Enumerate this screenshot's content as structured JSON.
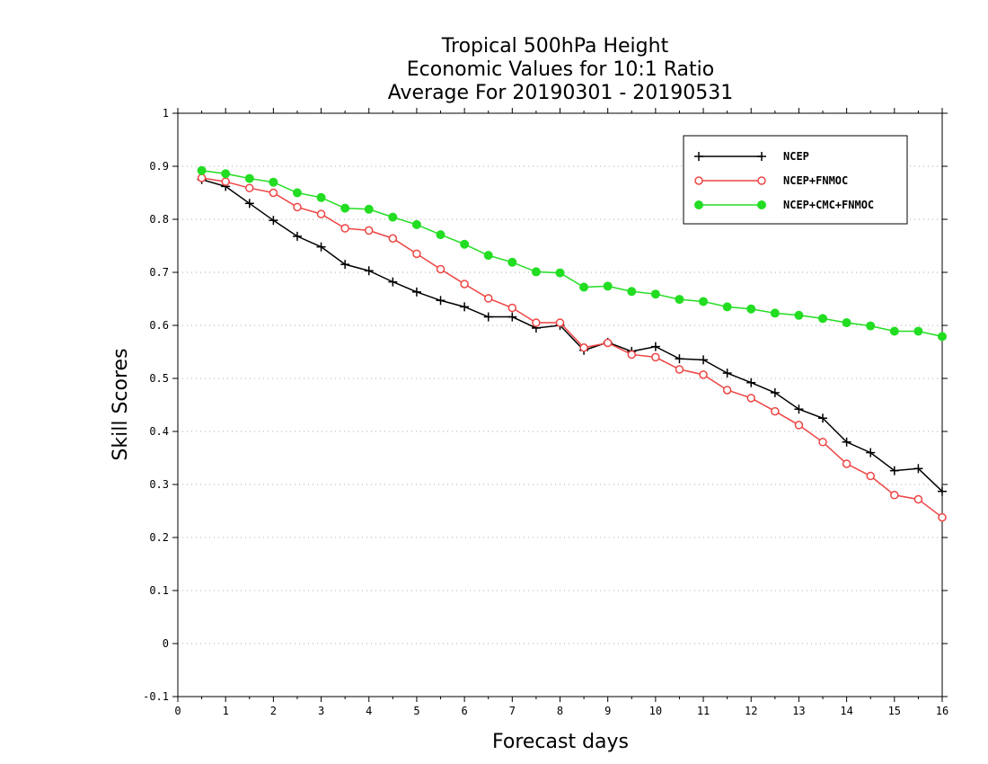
{
  "chart_data": {
    "type": "line",
    "title_lines": [
      "Tropical 500hPa Height",
      "Economic Values for 10:1 Ratio",
      "Average For 20190301 - 20190531"
    ],
    "xlabel": "Forecast days",
    "ylabel": "Skill Scores",
    "xlim": [
      0,
      16
    ],
    "ylim": [
      -0.1,
      1
    ],
    "x_ticks": [
      0,
      1,
      2,
      3,
      4,
      5,
      6,
      7,
      8,
      9,
      10,
      11,
      12,
      13,
      14,
      15,
      16
    ],
    "y_ticks": [
      -0.1,
      0,
      0.1,
      0.2,
      0.3,
      0.4,
      0.5,
      0.6,
      0.7,
      0.8,
      0.9,
      1
    ],
    "y_tick_labels": [
      "-0.1",
      "0",
      "0.1",
      "0.2",
      "0.3",
      "0.4",
      "0.5",
      "0.6",
      "0.7",
      "0.8",
      "0.9",
      "1"
    ],
    "grid": "horizontal dotted",
    "legend_position": "top-right",
    "x": [
      0.5,
      1,
      1.5,
      2,
      2.5,
      3,
      3.5,
      4,
      4.5,
      5,
      5.5,
      6,
      6.5,
      7,
      7.5,
      8,
      8.5,
      9,
      9.5,
      10,
      10.5,
      11,
      11.5,
      12,
      12.5,
      13,
      13.5,
      14,
      14.5,
      15,
      15.5,
      16
    ],
    "series": [
      {
        "name": "NCEP",
        "color": "#000000",
        "marker": "plus",
        "values": [
          0.875,
          0.862,
          0.83,
          0.798,
          0.768,
          0.748,
          0.715,
          0.703,
          0.682,
          0.663,
          0.647,
          0.635,
          0.616,
          0.616,
          0.595,
          0.6,
          0.553,
          0.568,
          0.551,
          0.56,
          0.537,
          0.535,
          0.51,
          0.492,
          0.473,
          0.442,
          0.425,
          0.38,
          0.36,
          0.326,
          0.33,
          0.287
        ]
      },
      {
        "name": "NCEP+FNMOC",
        "color": "#ee4444",
        "marker": "open-circle",
        "values": [
          0.878,
          0.871,
          0.859,
          0.85,
          0.823,
          0.81,
          0.783,
          0.779,
          0.764,
          0.735,
          0.706,
          0.678,
          0.651,
          0.633,
          0.605,
          0.605,
          0.558,
          0.567,
          0.545,
          0.54,
          0.517,
          0.507,
          0.478,
          0.463,
          0.438,
          0.412,
          0.38,
          0.339,
          0.316,
          0.28,
          0.272,
          0.238
        ]
      },
      {
        "name": "NCEP+CMC+FNMOC",
        "color": "#22dd22",
        "marker": "filled-circle",
        "values": [
          0.892,
          0.886,
          0.877,
          0.87,
          0.85,
          0.841,
          0.821,
          0.819,
          0.804,
          0.79,
          0.771,
          0.753,
          0.732,
          0.719,
          0.701,
          0.699,
          0.672,
          0.674,
          0.664,
          0.659,
          0.649,
          0.645,
          0.635,
          0.631,
          0.623,
          0.619,
          0.613,
          0.605,
          0.599,
          0.589,
          0.589,
          0.579
        ]
      }
    ]
  }
}
